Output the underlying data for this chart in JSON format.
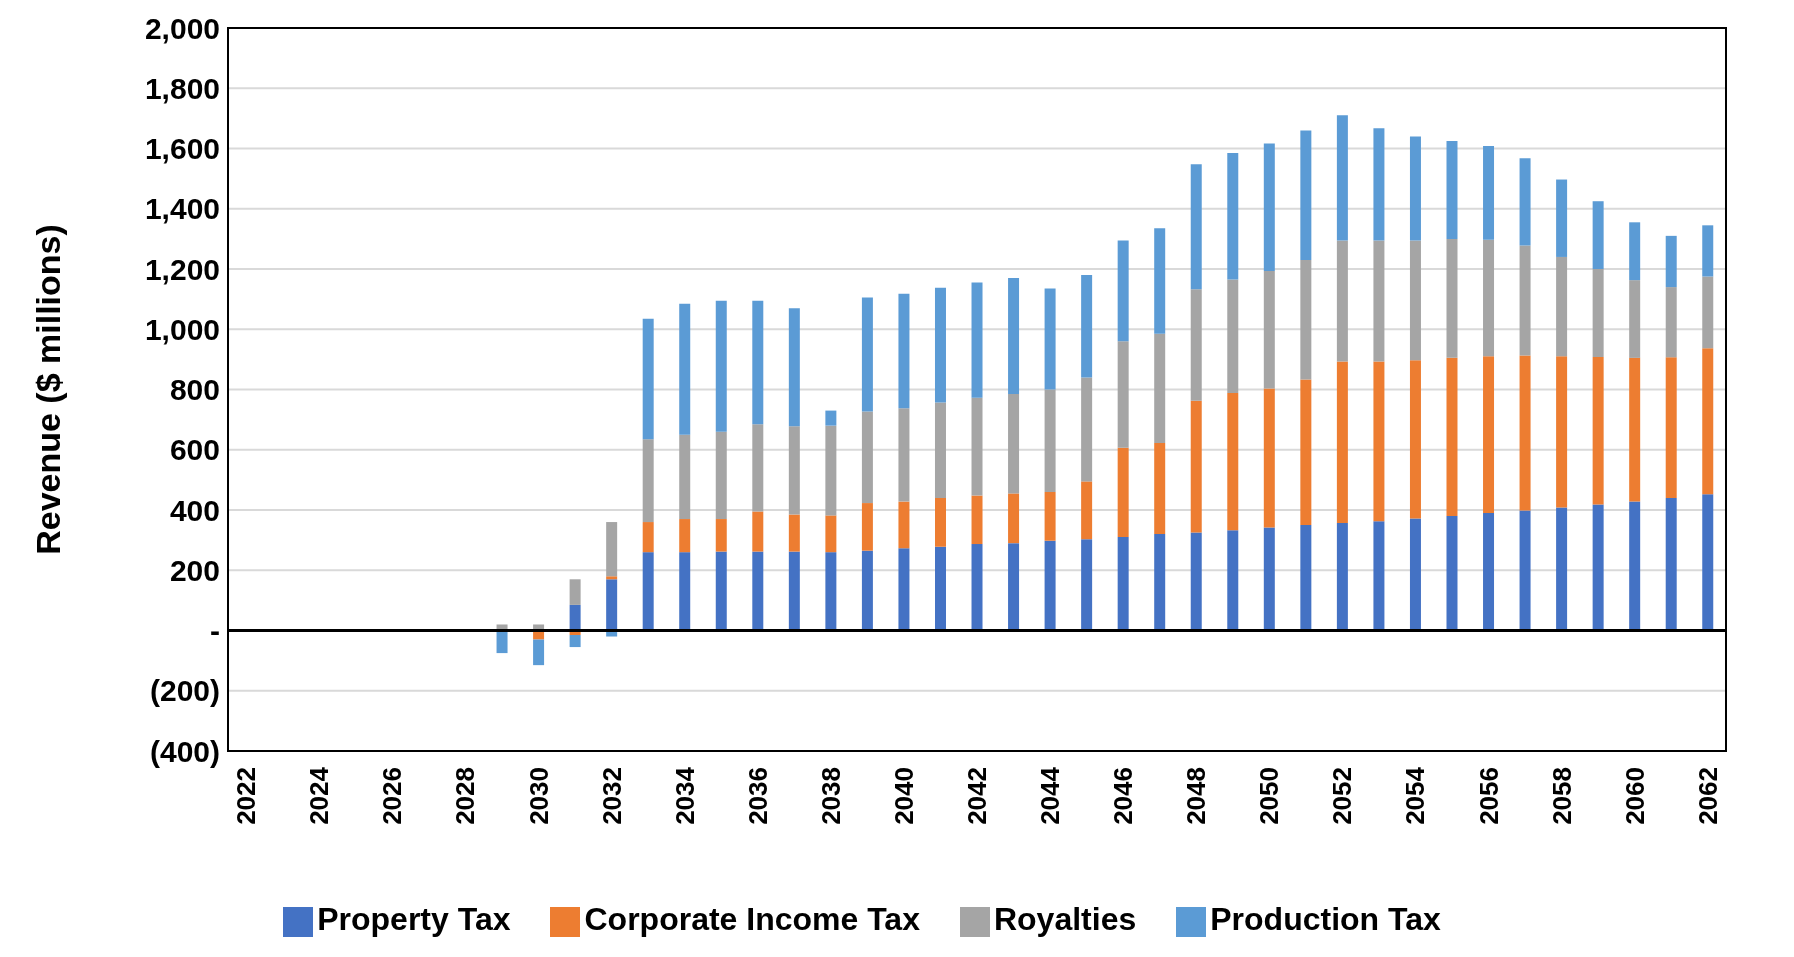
{
  "chart_data": {
    "type": "bar",
    "stacked": true,
    "ylabel": "Revenue ($ millions)",
    "categories": [
      "2022",
      null,
      "2024",
      null,
      "2026",
      null,
      "2028",
      null,
      "2030",
      null,
      "2032",
      null,
      "2034",
      null,
      "2036",
      null,
      "2038",
      null,
      "2040",
      null,
      "2042",
      null,
      "2044",
      null,
      "2046",
      null,
      "2048",
      null,
      "2050",
      null,
      "2052",
      null,
      "2054",
      null,
      "2056",
      null,
      "2058",
      null,
      "2060",
      null,
      "2062"
    ],
    "series": [
      {
        "name": "Property Tax",
        "color": "#4472c4",
        "values": [
          null,
          null,
          null,
          null,
          null,
          null,
          null,
          0,
          0,
          85,
          170,
          260,
          260,
          262,
          262,
          262,
          260,
          265,
          273,
          278,
          287,
          290,
          298,
          303,
          310,
          320,
          325,
          333,
          342,
          350,
          357,
          363,
          372,
          380,
          390,
          398,
          408,
          418,
          428,
          440,
          452
        ]
      },
      {
        "name": "Corporate Income Tax",
        "color": "#ed7d31",
        "values": [
          null,
          null,
          null,
          null,
          null,
          null,
          null,
          0,
          -30,
          -15,
          10,
          100,
          110,
          108,
          133,
          123,
          122,
          158,
          155,
          162,
          161,
          165,
          162,
          192,
          297,
          302,
          438,
          455,
          461,
          483,
          536,
          530,
          525,
          525,
          520,
          515,
          502,
          490,
          477,
          467,
          485
        ]
      },
      {
        "name": "Royalties",
        "color": "#a5a5a5",
        "values": [
          null,
          null,
          null,
          null,
          null,
          null,
          null,
          20,
          20,
          85,
          180,
          275,
          280,
          290,
          290,
          293,
          298,
          304,
          310,
          317,
          325,
          330,
          340,
          345,
          353,
          363,
          370,
          377,
          390,
          397,
          402,
          402,
          398,
          395,
          387,
          365,
          330,
          292,
          258,
          233,
          238
        ]
      },
      {
        "name": "Production Tax",
        "color": "#5b9bd5",
        "values": [
          null,
          null,
          null,
          null,
          null,
          null,
          null,
          -75,
          -85,
          -40,
          -20,
          400,
          435,
          435,
          410,
          392,
          50,
          378,
          380,
          381,
          382,
          385,
          335,
          340,
          335,
          350,
          415,
          420,
          424,
          430,
          415,
          372,
          345,
          325,
          311,
          290,
          257,
          225,
          192,
          170,
          170
        ]
      }
    ],
    "ylim": [
      -400,
      2000
    ],
    "yticks": [
      {
        "value": -400,
        "label": "(400)"
      },
      {
        "value": -200,
        "label": "(200)"
      },
      {
        "value": 0,
        "label": "-"
      },
      {
        "value": 200,
        "label": "200"
      },
      {
        "value": 400,
        "label": "400"
      },
      {
        "value": 600,
        "label": "600"
      },
      {
        "value": 800,
        "label": "800"
      },
      {
        "value": 1000,
        "label": "1,000"
      },
      {
        "value": 1200,
        "label": "1,200"
      },
      {
        "value": 1400,
        "label": "1,400"
      },
      {
        "value": 1600,
        "label": "1,600"
      },
      {
        "value": 1800,
        "label": "1,800"
      },
      {
        "value": 2000,
        "label": "2,000"
      }
    ],
    "grid": "y",
    "legend": "bottom"
  }
}
